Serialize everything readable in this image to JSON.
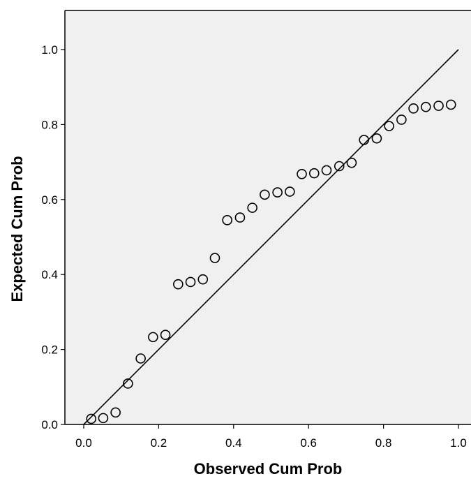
{
  "chart_data": {
    "type": "scatter",
    "title": "",
    "xlabel": "Observed Cum Prob",
    "ylabel": "Expected Cum Prob",
    "xlim": [
      -0.05,
      1.03
    ],
    "ylim": [
      0.0,
      1.1
    ],
    "x_ticks": [
      "0.0",
      "0.2",
      "0.4",
      "0.6",
      "0.8",
      "1.0"
    ],
    "y_ticks": [
      "0.0",
      "0.2",
      "0.4",
      "0.6",
      "0.8",
      "1.0"
    ],
    "grid": false,
    "reference_line": {
      "from": [
        0.0,
        0.0
      ],
      "to": [
        1.0,
        1.0
      ]
    },
    "points": [
      {
        "x": 0.02,
        "y": 0.015
      },
      {
        "x": 0.052,
        "y": 0.017
      },
      {
        "x": 0.085,
        "y": 0.032
      },
      {
        "x": 0.118,
        "y": 0.109
      },
      {
        "x": 0.152,
        "y": 0.176
      },
      {
        "x": 0.185,
        "y": 0.233
      },
      {
        "x": 0.218,
        "y": 0.239
      },
      {
        "x": 0.252,
        "y": 0.374
      },
      {
        "x": 0.285,
        "y": 0.38
      },
      {
        "x": 0.318,
        "y": 0.387
      },
      {
        "x": 0.35,
        "y": 0.444
      },
      {
        "x": 0.383,
        "y": 0.545
      },
      {
        "x": 0.417,
        "y": 0.552
      },
      {
        "x": 0.45,
        "y": 0.578
      },
      {
        "x": 0.483,
        "y": 0.613
      },
      {
        "x": 0.517,
        "y": 0.619
      },
      {
        "x": 0.55,
        "y": 0.621
      },
      {
        "x": 0.582,
        "y": 0.668
      },
      {
        "x": 0.615,
        "y": 0.67
      },
      {
        "x": 0.648,
        "y": 0.678
      },
      {
        "x": 0.682,
        "y": 0.689
      },
      {
        "x": 0.715,
        "y": 0.698
      },
      {
        "x": 0.748,
        "y": 0.759
      },
      {
        "x": 0.782,
        "y": 0.763
      },
      {
        "x": 0.815,
        "y": 0.796
      },
      {
        "x": 0.848,
        "y": 0.813
      },
      {
        "x": 0.88,
        "y": 0.843
      },
      {
        "x": 0.913,
        "y": 0.847
      },
      {
        "x": 0.947,
        "y": 0.85
      },
      {
        "x": 0.98,
        "y": 0.853
      }
    ],
    "colors": {
      "plot_background": "#f0f0f0",
      "marker_stroke": "#000000",
      "line": "#000000"
    }
  }
}
